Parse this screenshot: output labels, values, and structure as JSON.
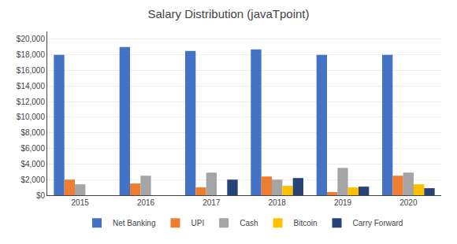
{
  "chart_data": {
    "type": "bar",
    "title": "Salary Distribution (javaTpoint)",
    "categories": [
      "2015",
      "2016",
      "2017",
      "2018",
      "2019",
      "2020"
    ],
    "series": [
      {
        "name": "Net Banking",
        "color": "#4472C4",
        "values": [
          18000,
          19000,
          18500,
          18700,
          18000,
          18000
        ]
      },
      {
        "name": "UPI",
        "color": "#ED7D31",
        "values": [
          2000,
          1500,
          1000,
          2400,
          400,
          2500
        ]
      },
      {
        "name": "Cash",
        "color": "#A5A5A5",
        "values": [
          1400,
          2500,
          2900,
          2000,
          3500,
          2900
        ]
      },
      {
        "name": "Bitcoin",
        "color": "#FFC000",
        "values": [
          0,
          0,
          0,
          1200,
          1000,
          1400
        ]
      },
      {
        "name": "Carry Forward",
        "color": "#264478",
        "values": [
          0,
          0,
          2000,
          2200,
          1100,
          900
        ]
      }
    ],
    "ylim": [
      0,
      21000
    ],
    "yticks": [
      {
        "value": 0,
        "label": "$0"
      },
      {
        "value": 2000,
        "label": "$2,000"
      },
      {
        "value": 4000,
        "label": "$4,000"
      },
      {
        "value": 6000,
        "label": "$6,000"
      },
      {
        "value": 8000,
        "label": "$8,000"
      },
      {
        "value": 10000,
        "label": "$10,000"
      },
      {
        "value": 12000,
        "label": "$12,000"
      },
      {
        "value": 14000,
        "label": "$14,000"
      },
      {
        "value": 16000,
        "label": "$16,000"
      },
      {
        "value": 18000,
        "label": "$18,000"
      },
      {
        "value": 20000,
        "label": "$20,000"
      }
    ],
    "grid": true,
    "legend": "bottom"
  }
}
